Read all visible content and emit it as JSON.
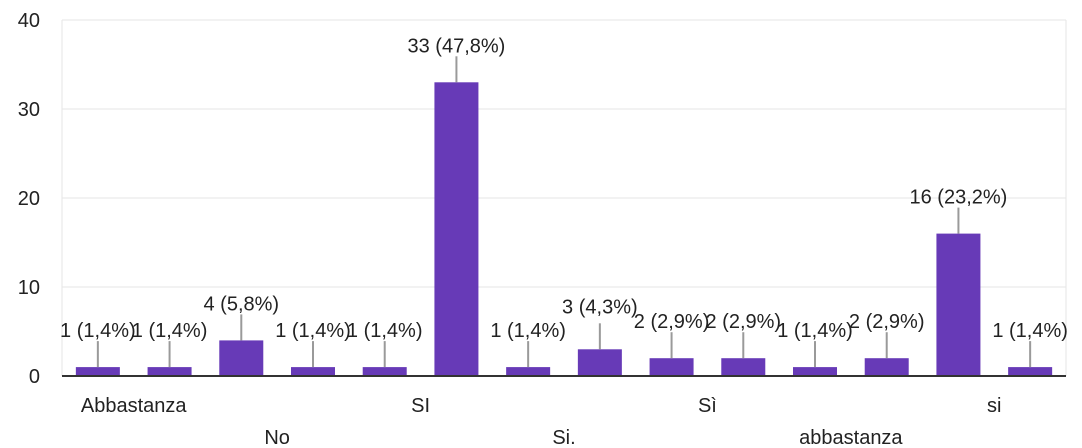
{
  "chart_data": {
    "type": "bar",
    "title": "",
    "xlabel": "",
    "ylabel": "",
    "ylim": [
      0,
      40
    ],
    "y_ticks": [
      "0",
      "10",
      "20",
      "30",
      "40"
    ],
    "grid": true,
    "legend": "none",
    "bar_color": "#673ab7",
    "categories": [
      "Abbastanza",
      "No",
      "No ",
      "SI",
      "SI ",
      "SI  ",
      "Si.",
      "Si. ",
      "Sì",
      "Sì ",
      "abbastanza",
      "abbastanza ",
      "si",
      "si "
    ],
    "visible_category_labels": [
      "Abbastanza",
      "No",
      "SI",
      "Si.",
      "Sì",
      "abbastanza",
      "si"
    ],
    "values": [
      1,
      1,
      4,
      1,
      1,
      33,
      1,
      3,
      2,
      2,
      1,
      2,
      16,
      1
    ],
    "data_labels": [
      "1 (1,4%)",
      "1 (1,4%)",
      "4 (5,8%)",
      "1 (1,4%)",
      "1 (1,4%)",
      "33 (47,8%)",
      "1 (1,4%)",
      "3 (4,3%)",
      "2 (2,9%)",
      "2 (2,9%)",
      "1 (1,4%)",
      "2 (2,9%)",
      "16 (23,2%)",
      "1 (1,4%)"
    ]
  }
}
